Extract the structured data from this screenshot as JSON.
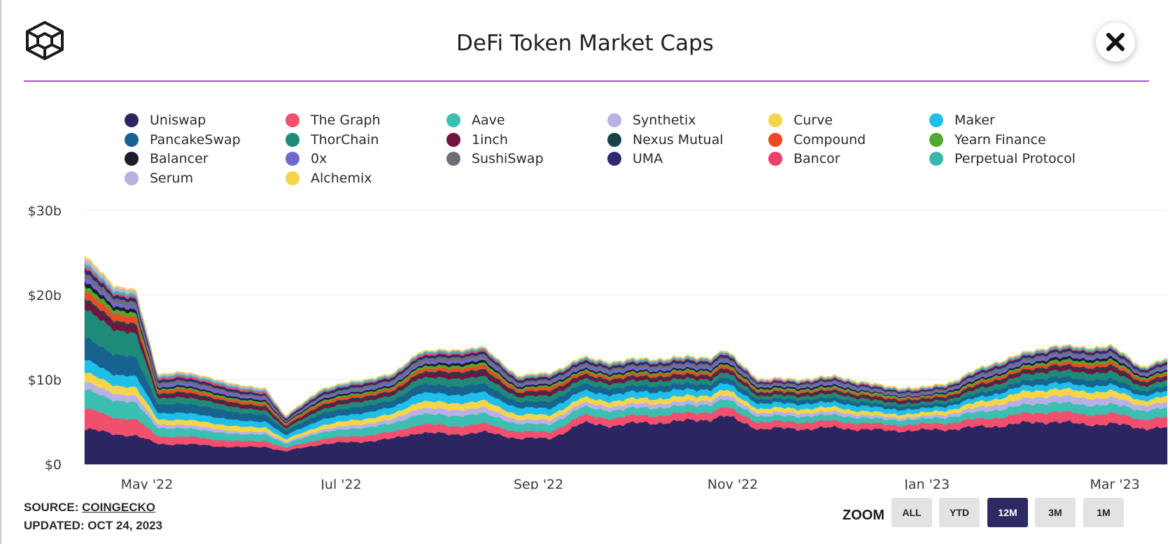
{
  "title": "DeFi Token Market Caps",
  "source": {
    "prefix": "SOURCE:",
    "link": "COINGECKO",
    "updated": "UPDATED: OCT 24, 2023"
  },
  "zoom": {
    "label": "ZOOM",
    "buttons": [
      "ALL",
      "YTD",
      "12M",
      "3M",
      "1M"
    ],
    "active": "12M"
  },
  "chart_data": {
    "type": "area",
    "stacked": true,
    "title": "DeFi Token Market Caps",
    "xlabel": "",
    "ylabel": "",
    "ylim": [
      0,
      30
    ],
    "y_ticks": [
      "$0",
      "$10b",
      "$20b",
      "$30b"
    ],
    "x_ticks": [
      "May '22",
      "Jul '22",
      "Sep '22",
      "Nov '22",
      "Jan '23",
      "Mar '23"
    ],
    "grid": true,
    "legend_position": "top",
    "x": [
      "2022-04-22",
      "2022-05-01",
      "2022-05-08",
      "2022-05-15",
      "2022-05-22",
      "2022-06-01",
      "2022-06-10",
      "2022-06-18",
      "2022-06-24",
      "2022-07-05",
      "2022-07-15",
      "2022-07-28",
      "2022-08-05",
      "2022-08-15",
      "2022-08-25",
      "2022-09-05",
      "2022-09-15",
      "2022-09-25",
      "2022-10-05",
      "2022-10-15",
      "2022-10-25",
      "2022-11-05",
      "2022-11-09",
      "2022-11-20",
      "2022-12-01",
      "2022-12-15",
      "2022-12-28",
      "2023-01-10",
      "2023-01-20",
      "2023-02-01",
      "2023-02-10",
      "2023-02-20",
      "2023-03-01",
      "2023-03-10",
      "2023-03-20",
      "2023-03-28"
    ],
    "total_billions": [
      25,
      21.5,
      21.5,
      10.5,
      11,
      10.5,
      9.5,
      8.8,
      5.5,
      8.8,
      9.8,
      10.8,
      13.5,
      13.8,
      14.4,
      10.7,
      11.2,
      12.8,
      12,
      12.2,
      12.3,
      12.5,
      13.2,
      10,
      10.1,
      10.4,
      9.2,
      8.6,
      9.3,
      12,
      13,
      14.2,
      14,
      14.8,
      11,
      12.5
    ],
    "series": [
      {
        "name": "Uniswap",
        "color": "#2b2661",
        "values": [
          4.2,
          3.6,
          3.4,
          2.4,
          2.4,
          2.2,
          2.0,
          2.1,
          1.5,
          2.4,
          2.6,
          3.0,
          3.8,
          3.5,
          3.8,
          3.1,
          3.0,
          4.8,
          4.6,
          4.9,
          5.0,
          5.4,
          5.7,
          4.2,
          4.2,
          4.3,
          4.0,
          4.0,
          4.2,
          4.5,
          4.8,
          5.1,
          4.7,
          4.8,
          4.3,
          4.3
        ]
      },
      {
        "name": "The Graph",
        "color": "#f0506e",
        "values": [
          2.4,
          2.0,
          1.9,
          0.9,
          0.9,
          0.8,
          0.7,
          0.7,
          0.4,
          0.6,
          0.7,
          0.8,
          1.0,
          1.0,
          1.0,
          0.8,
          0.8,
          0.9,
          0.9,
          0.9,
          0.9,
          0.9,
          1.0,
          0.8,
          0.8,
          0.8,
          0.7,
          0.7,
          0.8,
          1.0,
          1.1,
          1.2,
          1.2,
          1.2,
          1.1,
          1.2
        ]
      },
      {
        "name": "Aave",
        "color": "#3bbfb0",
        "values": [
          2.3,
          2.0,
          2.0,
          1.0,
          1.0,
          0.9,
          0.8,
          0.8,
          0.5,
          0.8,
          0.9,
          1.0,
          1.2,
          1.2,
          1.2,
          0.9,
          0.9,
          1.0,
          0.9,
          0.9,
          0.9,
          0.9,
          1.0,
          0.7,
          0.7,
          0.7,
          0.6,
          0.6,
          0.7,
          0.9,
          1.0,
          1.1,
          1.1,
          1.1,
          1.0,
          1.1
        ]
      },
      {
        "name": "Synthetix",
        "color": "#b8b0e6",
        "values": [
          0.9,
          0.8,
          0.8,
          0.4,
          0.4,
          0.4,
          0.3,
          0.3,
          0.2,
          0.3,
          0.4,
          0.5,
          0.7,
          0.7,
          0.7,
          0.5,
          0.5,
          0.5,
          0.5,
          0.5,
          0.5,
          0.5,
          0.5,
          0.4,
          0.4,
          0.4,
          0.3,
          0.3,
          0.4,
          0.6,
          0.7,
          0.8,
          0.8,
          0.8,
          0.6,
          0.7
        ]
      },
      {
        "name": "Curve",
        "color": "#f7d54a",
        "values": [
          1.1,
          1.0,
          1.0,
          0.6,
          0.6,
          0.6,
          0.6,
          0.5,
          0.3,
          0.5,
          0.6,
          0.6,
          0.8,
          0.8,
          0.8,
          0.6,
          0.6,
          0.6,
          0.6,
          0.6,
          0.6,
          0.6,
          0.6,
          0.5,
          0.5,
          0.5,
          0.4,
          0.4,
          0.5,
          0.7,
          0.8,
          0.8,
          0.8,
          0.8,
          0.6,
          0.7
        ]
      },
      {
        "name": "Maker",
        "color": "#1fbfe9",
        "values": [
          1.5,
          1.3,
          1.3,
          0.8,
          0.8,
          0.8,
          0.7,
          0.7,
          0.5,
          0.7,
          0.7,
          0.8,
          1.0,
          1.0,
          1.0,
          0.8,
          0.8,
          0.8,
          0.8,
          0.8,
          0.8,
          0.7,
          0.8,
          0.6,
          0.6,
          0.6,
          0.6,
          0.5,
          0.5,
          0.6,
          0.7,
          0.7,
          0.7,
          0.7,
          0.6,
          0.6
        ]
      },
      {
        "name": "PancakeSwap",
        "color": "#17638f",
        "values": [
          2.7,
          2.3,
          2.3,
          1.0,
          1.1,
          1.0,
          0.9,
          0.8,
          0.5,
          0.7,
          0.8,
          0.8,
          1.0,
          1.0,
          1.0,
          0.7,
          0.8,
          0.8,
          0.7,
          0.7,
          0.7,
          0.6,
          0.7,
          0.5,
          0.5,
          0.5,
          0.4,
          0.4,
          0.4,
          0.5,
          0.6,
          0.7,
          0.7,
          0.7,
          0.5,
          0.6
        ]
      },
      {
        "name": "ThorChain",
        "color": "#1e8a78",
        "values": [
          3.4,
          2.9,
          2.9,
          0.7,
          0.8,
          0.7,
          0.6,
          0.5,
          0.3,
          0.5,
          0.6,
          0.6,
          0.8,
          0.9,
          0.9,
          0.6,
          0.7,
          0.6,
          0.6,
          0.6,
          0.6,
          0.6,
          0.6,
          0.4,
          0.4,
          0.5,
          0.4,
          0.3,
          0.4,
          0.6,
          0.7,
          0.8,
          0.8,
          0.9,
          0.6,
          0.7
        ]
      },
      {
        "name": "1inch",
        "color": "#72143f",
        "values": [
          0.9,
          0.8,
          0.8,
          0.3,
          0.4,
          0.3,
          0.3,
          0.3,
          0.2,
          0.3,
          0.3,
          0.3,
          0.4,
          0.5,
          0.5,
          0.3,
          0.4,
          0.3,
          0.3,
          0.3,
          0.3,
          0.3,
          0.3,
          0.2,
          0.2,
          0.2,
          0.2,
          0.2,
          0.2,
          0.3,
          0.3,
          0.4,
          0.4,
          0.4,
          0.3,
          0.3
        ]
      },
      {
        "name": "Nexus Mutual",
        "color": "#1a424b",
        "values": [
          0.3,
          0.3,
          0.3,
          0.2,
          0.2,
          0.2,
          0.2,
          0.2,
          0.1,
          0.2,
          0.2,
          0.2,
          0.2,
          0.3,
          0.3,
          0.2,
          0.2,
          0.2,
          0.2,
          0.2,
          0.2,
          0.2,
          0.2,
          0.2,
          0.2,
          0.2,
          0.2,
          0.2,
          0.2,
          0.2,
          0.2,
          0.2,
          0.2,
          0.3,
          0.2,
          0.2
        ]
      },
      {
        "name": "Compound",
        "color": "#ec4a25",
        "values": [
          0.9,
          0.8,
          0.8,
          0.3,
          0.4,
          0.3,
          0.3,
          0.3,
          0.2,
          0.3,
          0.3,
          0.3,
          0.4,
          0.4,
          0.5,
          0.3,
          0.4,
          0.3,
          0.3,
          0.3,
          0.3,
          0.3,
          0.3,
          0.2,
          0.2,
          0.2,
          0.2,
          0.2,
          0.2,
          0.3,
          0.3,
          0.3,
          0.4,
          0.4,
          0.3,
          0.3
        ]
      },
      {
        "name": "Yearn Finance",
        "color": "#54a82d",
        "values": [
          0.6,
          0.5,
          0.5,
          0.2,
          0.2,
          0.2,
          0.2,
          0.2,
          0.1,
          0.2,
          0.2,
          0.2,
          0.3,
          0.3,
          0.3,
          0.2,
          0.2,
          0.2,
          0.2,
          0.2,
          0.2,
          0.2,
          0.2,
          0.2,
          0.2,
          0.2,
          0.2,
          0.1,
          0.2,
          0.2,
          0.2,
          0.3,
          0.3,
          0.3,
          0.2,
          0.2
        ]
      },
      {
        "name": "Balancer",
        "color": "#1c1c2e",
        "values": [
          0.5,
          0.4,
          0.4,
          0.2,
          0.2,
          0.2,
          0.2,
          0.2,
          0.1,
          0.2,
          0.2,
          0.2,
          0.2,
          0.3,
          0.3,
          0.2,
          0.2,
          0.2,
          0.2,
          0.2,
          0.2,
          0.2,
          0.2,
          0.2,
          0.2,
          0.2,
          0.1,
          0.1,
          0.2,
          0.2,
          0.2,
          0.3,
          0.3,
          0.3,
          0.2,
          0.2
        ]
      },
      {
        "name": "0x",
        "color": "#6f69cf",
        "values": [
          0.5,
          0.4,
          0.4,
          0.3,
          0.3,
          0.3,
          0.3,
          0.3,
          0.1,
          0.2,
          0.2,
          0.3,
          0.3,
          0.3,
          0.3,
          0.2,
          0.2,
          0.3,
          0.3,
          0.3,
          0.3,
          0.3,
          0.3,
          0.2,
          0.2,
          0.3,
          0.2,
          0.2,
          0.2,
          0.3,
          0.3,
          0.3,
          0.3,
          0.3,
          0.2,
          0.3
        ]
      },
      {
        "name": "SushiSwap",
        "color": "#6e6e76",
        "values": [
          0.6,
          0.5,
          0.5,
          0.3,
          0.3,
          0.3,
          0.2,
          0.2,
          0.1,
          0.2,
          0.3,
          0.3,
          0.4,
          0.4,
          0.4,
          0.3,
          0.3,
          0.3,
          0.3,
          0.3,
          0.3,
          0.3,
          0.3,
          0.2,
          0.2,
          0.2,
          0.2,
          0.2,
          0.2,
          0.3,
          0.3,
          0.3,
          0.3,
          0.3,
          0.2,
          0.3
        ]
      },
      {
        "name": "UMA",
        "color": "#2e2a6e",
        "values": [
          0.5,
          0.4,
          0.4,
          0.3,
          0.3,
          0.3,
          0.3,
          0.2,
          0.2,
          0.3,
          0.3,
          0.3,
          0.3,
          0.3,
          0.3,
          0.3,
          0.3,
          0.3,
          0.3,
          0.3,
          0.3,
          0.3,
          0.3,
          0.2,
          0.2,
          0.2,
          0.2,
          0.2,
          0.2,
          0.3,
          0.3,
          0.3,
          0.3,
          0.3,
          0.3,
          0.3
        ]
      },
      {
        "name": "Bancor",
        "color": "#ee4068",
        "values": [
          0.3,
          0.2,
          0.2,
          0.2,
          0.2,
          0.2,
          0.2,
          0.2,
          0.1,
          0.1,
          0.1,
          0.1,
          0.2,
          0.2,
          0.2,
          0.1,
          0.1,
          0.1,
          0.1,
          0.1,
          0.1,
          0.1,
          0.1,
          0.1,
          0.1,
          0.1,
          0.1,
          0.1,
          0.1,
          0.1,
          0.1,
          0.1,
          0.1,
          0.1,
          0.1,
          0.1
        ]
      },
      {
        "name": "Perpetual Protocol",
        "color": "#3ab7ad",
        "values": [
          0.4,
          0.3,
          0.3,
          0.2,
          0.2,
          0.2,
          0.2,
          0.2,
          0.1,
          0.2,
          0.2,
          0.2,
          0.2,
          0.2,
          0.2,
          0.2,
          0.2,
          0.2,
          0.2,
          0.2,
          0.2,
          0.2,
          0.2,
          0.1,
          0.1,
          0.1,
          0.1,
          0.1,
          0.1,
          0.2,
          0.2,
          0.2,
          0.2,
          0.2,
          0.1,
          0.2
        ]
      },
      {
        "name": "Serum",
        "color": "#b9b2e0",
        "values": [
          0.5,
          0.4,
          0.4,
          0.2,
          0.2,
          0.2,
          0.2,
          0.2,
          0.1,
          0.1,
          0.1,
          0.1,
          0.1,
          0.1,
          0.1,
          0.1,
          0.1,
          0.1,
          0.1,
          0.1,
          0.1,
          0.1,
          0.1,
          0.1,
          0.1,
          0.1,
          0.1,
          0.1,
          0.1,
          0.1,
          0.1,
          0.1,
          0.1,
          0.1,
          0.1,
          0.1
        ]
      },
      {
        "name": "Alchemix",
        "color": "#f6d347",
        "values": [
          0.3,
          0.2,
          0.2,
          0.1,
          0.1,
          0.1,
          0.1,
          0.1,
          0.1,
          0.1,
          0.1,
          0.1,
          0.1,
          0.1,
          0.1,
          0.1,
          0.1,
          0.1,
          0.1,
          0.1,
          0.1,
          0.1,
          0.1,
          0.1,
          0.1,
          0.1,
          0.1,
          0.1,
          0.1,
          0.1,
          0.1,
          0.1,
          0.1,
          0.1,
          0.1,
          0.1
        ]
      }
    ]
  }
}
